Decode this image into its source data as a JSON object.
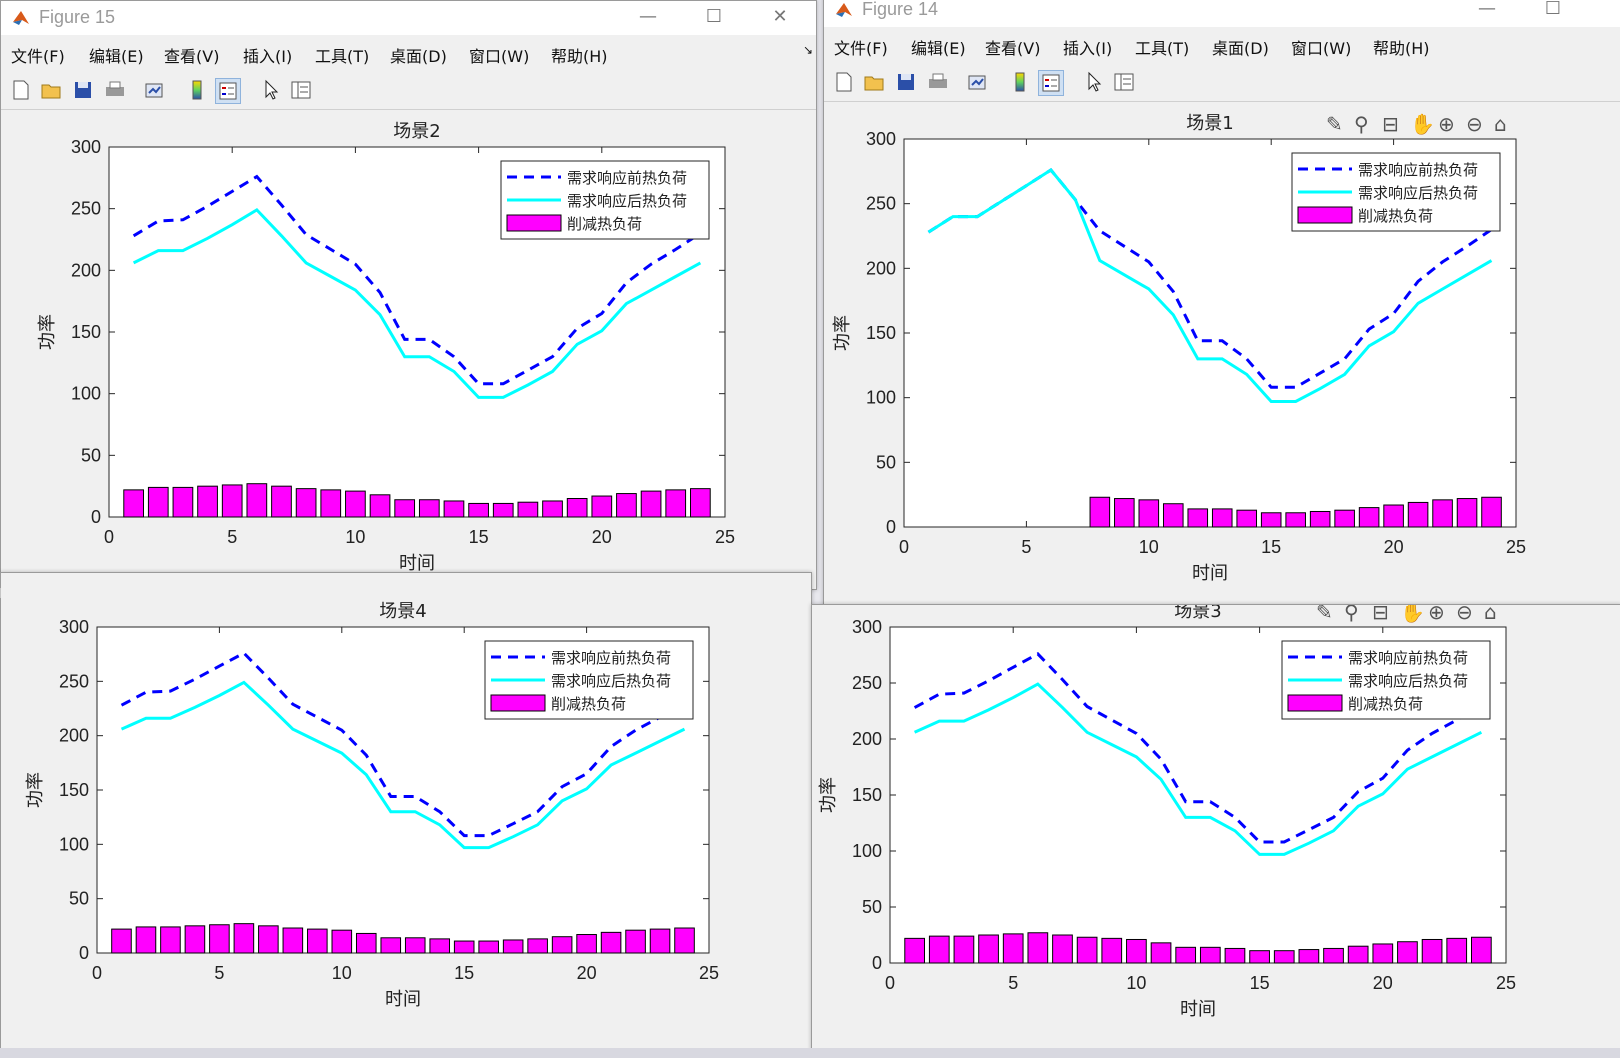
{
  "windows": [
    {
      "id": "fig15",
      "title": "Figure 15"
    },
    {
      "id": "fig14",
      "title": "Figure 14"
    }
  ],
  "menu": [
    "文件(F)",
    "编辑(E)",
    "查看(V)",
    "插入(I)",
    "工具(T)",
    "桌面(D)",
    "窗口(W)",
    "帮助(H)"
  ],
  "icons": {
    "toolbar": [
      "new-figure-icon",
      "open-file-icon",
      "save-icon",
      "print-icon",
      "link-plot-icon",
      "colorbar-icon",
      "legend-icon",
      "pointer-icon",
      "property-inspector-icon"
    ],
    "axes_toolbar": [
      "brush-icon",
      "data-tip-icon",
      "rotate-icon",
      "pan-icon",
      "zoom-in-icon",
      "zoom-out-icon",
      "home-icon"
    ],
    "window_controls": [
      "minimize-icon",
      "maximize-icon",
      "close-icon"
    ]
  },
  "colors": {
    "before": "#0000ff",
    "after": "#00ffff",
    "bar": "#ff00ff"
  },
  "chart_data": [
    {
      "type": "bar+line",
      "title": "场景2",
      "xlabel": "时间",
      "ylabel": "功率",
      "xlim": [
        0,
        25
      ],
      "ylim": [
        0,
        300
      ],
      "xticks": [
        0,
        5,
        10,
        15,
        20,
        25
      ],
      "yticks": [
        0,
        50,
        100,
        150,
        200,
        250,
        300
      ],
      "legend": {
        "placement": "top-right",
        "entries": [
          "需求响应前热负荷",
          "需求响应后热负荷",
          "削减热负荷"
        ]
      },
      "x": [
        1,
        2,
        3,
        4,
        5,
        6,
        7,
        8,
        9,
        10,
        11,
        12,
        13,
        14,
        15,
        16,
        17,
        18,
        19,
        20,
        21,
        22,
        23,
        24
      ],
      "series": [
        {
          "name": "需求响应前热负荷",
          "style": "dashed",
          "values": [
            228,
            240,
            241,
            252,
            264,
            276,
            253,
            229,
            217,
            205,
            182,
            144,
            144,
            130,
            108,
            108,
            119,
            130,
            153,
            165,
            190,
            205,
            217,
            230
          ]
        },
        {
          "name": "需求响应后热负荷",
          "style": "solid",
          "values": [
            206,
            216,
            216,
            226,
            237,
            249,
            228,
            206,
            195,
            184,
            164,
            130,
            130,
            118,
            97,
            97,
            107,
            118,
            140,
            151,
            173,
            184,
            195,
            206
          ]
        },
        {
          "name": "削减热负荷",
          "style": "bar",
          "values": [
            22,
            24,
            24,
            25,
            26,
            27,
            25,
            23,
            22,
            21,
            18,
            14,
            14,
            13,
            11,
            11,
            12,
            13,
            15,
            17,
            19,
            21,
            22,
            23
          ]
        }
      ]
    },
    {
      "type": "bar+line",
      "title": "场景1",
      "xlabel": "时间",
      "ylabel": "功率",
      "xlim": [
        0,
        25
      ],
      "ylim": [
        0,
        300
      ],
      "xticks": [
        0,
        5,
        10,
        15,
        20,
        25
      ],
      "yticks": [
        0,
        50,
        100,
        150,
        200,
        250,
        300
      ],
      "legend": {
        "placement": "top-right",
        "entries": [
          "需求响应前热负荷",
          "需求响应后热负荷",
          "削减热负荷"
        ]
      },
      "x": [
        1,
        2,
        3,
        4,
        5,
        6,
        7,
        8,
        9,
        10,
        11,
        12,
        13,
        14,
        15,
        16,
        17,
        18,
        19,
        20,
        21,
        22,
        23,
        24
      ],
      "series": [
        {
          "name": "需求响应前热负荷",
          "style": "dashed",
          "values": [
            228,
            240,
            240,
            252,
            264,
            276,
            253,
            229,
            217,
            205,
            182,
            144,
            144,
            130,
            108,
            108,
            119,
            130,
            153,
            165,
            190,
            205,
            217,
            230
          ]
        },
        {
          "name": "需求响应后热负荷",
          "style": "solid",
          "values": [
            228,
            240,
            240,
            252,
            264,
            276,
            253,
            206,
            195,
            184,
            164,
            130,
            130,
            118,
            97,
            97,
            107,
            118,
            140,
            151,
            173,
            184,
            195,
            206
          ]
        },
        {
          "name": "削减热负荷",
          "style": "bar",
          "values": [
            0,
            0,
            0,
            0,
            0,
            0,
            0,
            23,
            22,
            21,
            18,
            14,
            14,
            13,
            11,
            11,
            12,
            13,
            15,
            17,
            19,
            21,
            22,
            23
          ]
        }
      ]
    },
    {
      "type": "bar+line",
      "title": "场景4",
      "xlabel": "时间",
      "ylabel": "功率",
      "xlim": [
        0,
        25
      ],
      "ylim": [
        0,
        300
      ],
      "xticks": [
        0,
        5,
        10,
        15,
        20,
        25
      ],
      "yticks": [
        0,
        50,
        100,
        150,
        200,
        250,
        300
      ],
      "legend": {
        "placement": "top-right",
        "entries": [
          "需求响应前热负荷",
          "需求响应后热负荷",
          "削减热负荷"
        ]
      },
      "x": [
        1,
        2,
        3,
        4,
        5,
        6,
        7,
        8,
        9,
        10,
        11,
        12,
        13,
        14,
        15,
        16,
        17,
        18,
        19,
        20,
        21,
        22,
        23,
        24
      ],
      "series": [
        {
          "name": "需求响应前热负荷",
          "style": "dashed",
          "values": [
            228,
            240,
            241,
            252,
            264,
            276,
            253,
            229,
            217,
            205,
            182,
            144,
            144,
            130,
            108,
            108,
            119,
            130,
            153,
            165,
            190,
            205,
            217,
            230
          ]
        },
        {
          "name": "需求响应后热负荷",
          "style": "solid",
          "values": [
            206,
            216,
            216,
            226,
            237,
            249,
            228,
            206,
            195,
            184,
            164,
            130,
            130,
            118,
            97,
            97,
            107,
            118,
            140,
            151,
            173,
            184,
            195,
            206
          ]
        },
        {
          "name": "削减热负荷",
          "style": "bar",
          "values": [
            22,
            24,
            24,
            25,
            26,
            27,
            25,
            23,
            22,
            21,
            18,
            14,
            14,
            13,
            11,
            11,
            12,
            13,
            15,
            17,
            19,
            21,
            22,
            23
          ]
        }
      ]
    },
    {
      "type": "bar+line",
      "title": "场景3",
      "xlabel": "时间",
      "ylabel": "功率",
      "xlim": [
        0,
        25
      ],
      "ylim": [
        0,
        300
      ],
      "xticks": [
        0,
        5,
        10,
        15,
        20,
        25
      ],
      "yticks": [
        0,
        50,
        100,
        150,
        200,
        250,
        300
      ],
      "legend": {
        "placement": "top-right",
        "entries": [
          "需求响应前热负荷",
          "需求响应后热负荷",
          "削减热负荷"
        ]
      },
      "x": [
        1,
        2,
        3,
        4,
        5,
        6,
        7,
        8,
        9,
        10,
        11,
        12,
        13,
        14,
        15,
        16,
        17,
        18,
        19,
        20,
        21,
        22,
        23,
        24
      ],
      "series": [
        {
          "name": "需求响应前热负荷",
          "style": "dashed",
          "values": [
            228,
            240,
            241,
            252,
            264,
            276,
            253,
            229,
            217,
            205,
            182,
            144,
            144,
            130,
            108,
            108,
            119,
            130,
            153,
            165,
            190,
            205,
            217,
            230
          ]
        },
        {
          "name": "需求响应后热负荷",
          "style": "solid",
          "values": [
            206,
            216,
            216,
            226,
            237,
            249,
            228,
            206,
            195,
            184,
            164,
            130,
            130,
            118,
            97,
            97,
            107,
            118,
            140,
            151,
            173,
            184,
            195,
            206
          ]
        },
        {
          "name": "削减热负荷",
          "style": "bar",
          "values": [
            22,
            24,
            24,
            25,
            26,
            27,
            25,
            23,
            22,
            21,
            18,
            14,
            14,
            13,
            11,
            11,
            12,
            13,
            15,
            17,
            19,
            21,
            22,
            23
          ]
        }
      ]
    }
  ]
}
